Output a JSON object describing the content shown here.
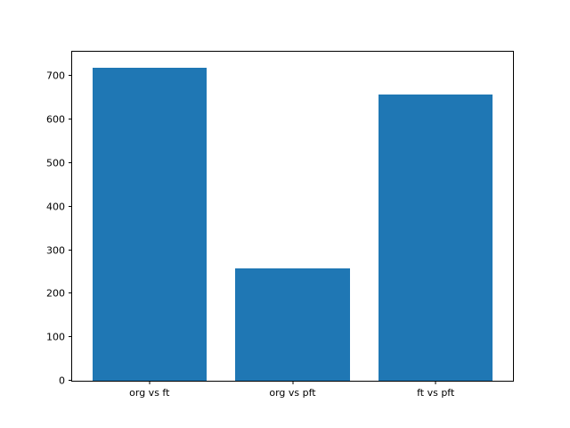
{
  "figure": {
    "background": "#ffffff",
    "spine_color": "#000000",
    "tick_label_color": "#000000"
  },
  "chart_data": {
    "type": "bar",
    "title": "",
    "xlabel": "",
    "ylabel": "",
    "categories": [
      "org vs ft",
      "org vs pft",
      "ft vs pft"
    ],
    "values": [
      720,
      259,
      657
    ],
    "bar_color": "#1f77b4",
    "bar_width_fraction": 0.8,
    "yticks": [
      0,
      100,
      200,
      300,
      400,
      500,
      600,
      700
    ],
    "ylim": [
      0,
      756
    ],
    "xlim": [
      -0.54,
      2.54
    ],
    "grid": false,
    "legend": null
  }
}
